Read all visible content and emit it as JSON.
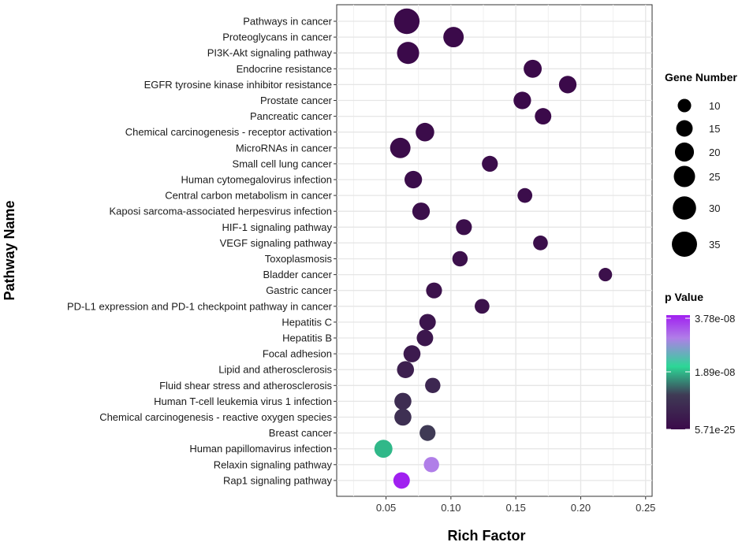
{
  "chart_data": {
    "type": "scatter",
    "xlabel": "Rich Factor",
    "ylabel": "Pathway Name",
    "xlim": [
      0.012,
      0.255
    ],
    "x_ticks": [
      "0.05",
      "0.10",
      "0.15",
      "0.20",
      "0.25"
    ],
    "x_tick_values": [
      0.05,
      0.1,
      0.15,
      0.2,
      0.25
    ],
    "grid": true,
    "size_legend": {
      "title": "Gene Number",
      "values": [
        10,
        15,
        20,
        25,
        30,
        35
      ],
      "labels": [
        "10",
        "15",
        "20",
        "25",
        "30",
        "35"
      ]
    },
    "color_legend": {
      "title": "p Value",
      "labels": [
        "3.78e-08",
        "1.89e-08",
        "5.71e-25"
      ],
      "colors": [
        "#a020f0",
        "#b07ee8",
        "#2cd796",
        "#3f3a55",
        "#3b0a4a"
      ]
    },
    "points": [
      {
        "pathway": "Pathways in cancer",
        "rich_factor": 0.066,
        "gene_number": 36,
        "color_t": 0.0
      },
      {
        "pathway": "Proteoglycans in cancer",
        "rich_factor": 0.102,
        "gene_number": 23,
        "color_t": 0.0
      },
      {
        "pathway": "PI3K-Akt signaling pathway",
        "rich_factor": 0.067,
        "gene_number": 27,
        "color_t": 0.0
      },
      {
        "pathway": "Endocrine resistance",
        "rich_factor": 0.163,
        "gene_number": 18,
        "color_t": 0.0
      },
      {
        "pathway": "EGFR tyrosine kinase inhibitor resistance",
        "rich_factor": 0.19,
        "gene_number": 17,
        "color_t": 0.0
      },
      {
        "pathway": "Prostate cancer",
        "rich_factor": 0.155,
        "gene_number": 17,
        "color_t": 0.0
      },
      {
        "pathway": "Pancreatic cancer",
        "rich_factor": 0.171,
        "gene_number": 15,
        "color_t": 0.0
      },
      {
        "pathway": "Chemical carcinogenesis - receptor activation",
        "rich_factor": 0.08,
        "gene_number": 19,
        "color_t": 0.01
      },
      {
        "pathway": "MicroRNAs in cancer",
        "rich_factor": 0.061,
        "gene_number": 23,
        "color_t": 0.01
      },
      {
        "pathway": "Small cell lung cancer",
        "rich_factor": 0.13,
        "gene_number": 14,
        "color_t": 0.02
      },
      {
        "pathway": "Human cytomegalovirus infection",
        "rich_factor": 0.071,
        "gene_number": 17,
        "color_t": 0.02
      },
      {
        "pathway": "Central carbon metabolism in cancer",
        "rich_factor": 0.157,
        "gene_number": 12,
        "color_t": 0.02
      },
      {
        "pathway": "Kaposi sarcoma-associated herpesvirus infection",
        "rich_factor": 0.077,
        "gene_number": 17,
        "color_t": 0.03
      },
      {
        "pathway": "HIF-1 signaling pathway",
        "rich_factor": 0.11,
        "gene_number": 14,
        "color_t": 0.03
      },
      {
        "pathway": "VEGF signaling pathway",
        "rich_factor": 0.169,
        "gene_number": 12,
        "color_t": 0.03
      },
      {
        "pathway": "Toxoplasmosis",
        "rich_factor": 0.107,
        "gene_number": 13,
        "color_t": 0.04
      },
      {
        "pathway": "Bladder cancer",
        "rich_factor": 0.219,
        "gene_number": 10,
        "color_t": 0.04
      },
      {
        "pathway": "Gastric cancer",
        "rich_factor": 0.087,
        "gene_number": 14,
        "color_t": 0.05
      },
      {
        "pathway": "PD-L1 expression and PD-1 checkpoint pathway in cancer",
        "rich_factor": 0.124,
        "gene_number": 12,
        "color_t": 0.05
      },
      {
        "pathway": "Hepatitis C",
        "rich_factor": 0.082,
        "gene_number": 15,
        "color_t": 0.07
      },
      {
        "pathway": "Hepatitis B",
        "rich_factor": 0.08,
        "gene_number": 15,
        "color_t": 0.08
      },
      {
        "pathway": "Focal adhesion",
        "rich_factor": 0.07,
        "gene_number": 16,
        "color_t": 0.1
      },
      {
        "pathway": "Lipid and atherosclerosis",
        "rich_factor": 0.065,
        "gene_number": 16,
        "color_t": 0.14
      },
      {
        "pathway": "Fluid shear stress and atherosclerosis",
        "rich_factor": 0.086,
        "gene_number": 13,
        "color_t": 0.18
      },
      {
        "pathway": "Human T-cell leukemia virus 1 infection",
        "rich_factor": 0.063,
        "gene_number": 16,
        "color_t": 0.22
      },
      {
        "pathway": "Chemical carcinogenesis - reactive oxygen species",
        "rich_factor": 0.063,
        "gene_number": 16,
        "color_t": 0.24
      },
      {
        "pathway": "Breast cancer",
        "rich_factor": 0.082,
        "gene_number": 14,
        "color_t": 0.3
      },
      {
        "pathway": "Human papillomavirus infection",
        "rich_factor": 0.048,
        "gene_number": 18,
        "color_t": 0.5
      },
      {
        "pathway": "Relaxin signaling pathway",
        "rich_factor": 0.085,
        "gene_number": 13,
        "color_t": 0.8
      },
      {
        "pathway": "Rap1 signaling pathway",
        "rich_factor": 0.062,
        "gene_number": 15,
        "color_t": 1.0
      }
    ]
  }
}
